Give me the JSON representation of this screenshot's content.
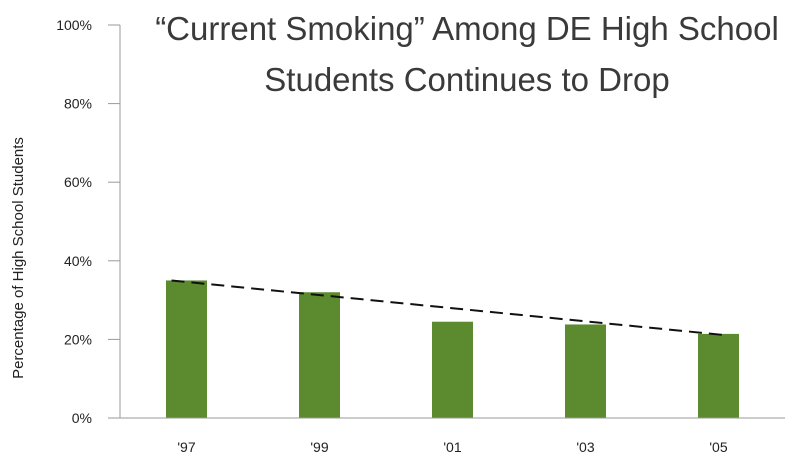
{
  "chart_data": {
    "type": "bar",
    "title_lines": [
      "“Current Smoking” Among DE High School",
      "Students Continues to Drop"
    ],
    "xlabel": "",
    "ylabel": "Percentage of High School Students",
    "categories": [
      "'97",
      "'99",
      "'01",
      "'03",
      "'05"
    ],
    "series": [
      {
        "values": [
          35,
          32,
          24.5,
          23.8,
          21.4
        ]
      }
    ],
    "trendline": {
      "style": "dashed",
      "start": 35,
      "end": 21
    },
    "ylim": [
      0,
      100
    ],
    "yticks": [
      0,
      20,
      40,
      60,
      80,
      100
    ],
    "ytick_labels": [
      "0%",
      "20%",
      "40%",
      "60%",
      "80%",
      "100%"
    ],
    "grid": false,
    "legend": "none",
    "colors": {
      "bar": "#5c8a2e",
      "trend": "#111111",
      "axis": "#9a9a9a"
    }
  }
}
